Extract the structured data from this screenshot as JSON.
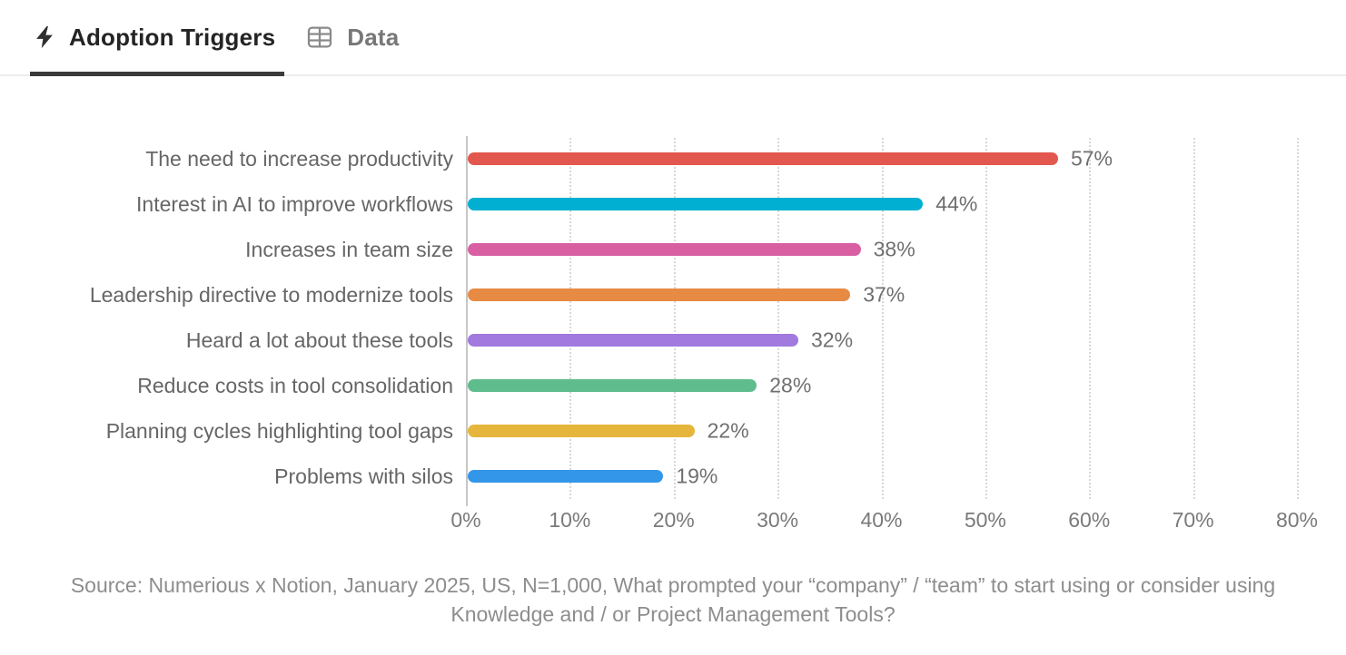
{
  "header": {
    "tabs": [
      {
        "label": "Adoption Triggers",
        "icon": "lightning-icon",
        "active": true
      },
      {
        "label": "Data",
        "icon": "table-icon",
        "active": false
      }
    ]
  },
  "chart_data": {
    "type": "bar",
    "orientation": "horizontal",
    "title": "Adoption Triggers",
    "categories": [
      "The need to increase productivity",
      "Interest in AI to improve workflows",
      "Increases in team size",
      "Leadership directive to modernize tools",
      "Heard a lot about these tools",
      "Reduce costs in tool consolidation",
      "Planning cycles highlighting tool gaps",
      "Problems with silos"
    ],
    "values": [
      57,
      44,
      38,
      37,
      32,
      28,
      22,
      19
    ],
    "value_labels": [
      "57%",
      "44%",
      "38%",
      "37%",
      "32%",
      "28%",
      "22%",
      "19%"
    ],
    "bar_colors": [
      "#E2584F",
      "#00AFD1",
      "#D95FA3",
      "#E78A43",
      "#A179DF",
      "#5FBC8C",
      "#E5B63B",
      "#3496E9"
    ],
    "xlim": [
      0,
      80
    ],
    "x_tick_values": [
      0,
      10,
      20,
      30,
      40,
      50,
      60,
      70,
      80
    ],
    "x_tick_labels": [
      "0%",
      "10%",
      "20%",
      "30%",
      "40%",
      "50%",
      "60%",
      "70%",
      "80%"
    ],
    "grid": "vertical dotted gridlines at each 10% tick",
    "legend": "none",
    "axis_color": "#c6c6c6"
  },
  "source": {
    "text": "Source: Numerious x Notion, January 2025, US, N=1,000, What prompted your “company” / “team” to start using or consider using Knowledge and / or Project Management Tools?"
  }
}
